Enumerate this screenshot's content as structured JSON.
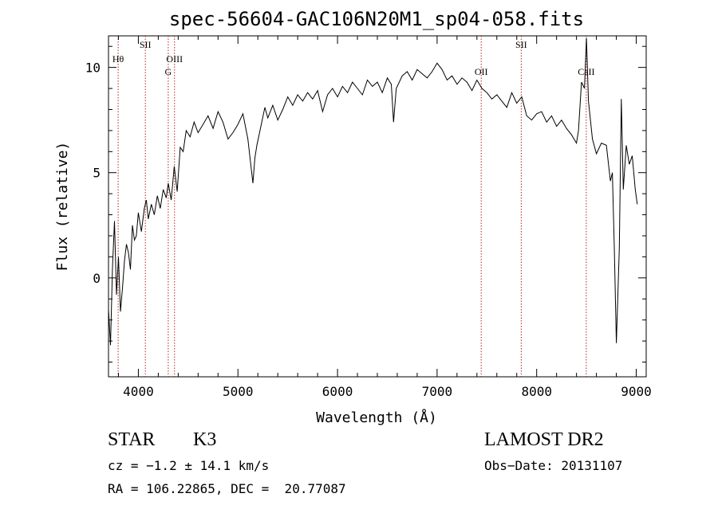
{
  "chart_data": {
    "type": "line",
    "title": "spec-56604-GAC106N20M1_sp04-058.fits",
    "xlabel": "Wavelength (Å)",
    "ylabel": "Flux (relative)",
    "xlim": [
      3700,
      9100
    ],
    "ylim": [
      -4.7,
      11.5
    ],
    "xticks": [
      4000,
      5000,
      6000,
      7000,
      8000,
      9000
    ],
    "yticks": [
      0,
      5,
      10
    ],
    "grid": false,
    "line_color": "#000000",
    "marker_color": "#b22222",
    "lines": [
      {
        "wavelength": 3797,
        "label": "Hθ"
      },
      {
        "wavelength": 4070,
        "label": "SII"
      },
      {
        "wavelength": 4300,
        "label": "G"
      },
      {
        "wavelength": 4363,
        "label": "OIII"
      },
      {
        "wavelength": 7443,
        "label": "OII"
      },
      {
        "wavelength": 7845,
        "label": "SII"
      },
      {
        "wavelength": 8498,
        "label": "CaII"
      }
    ],
    "series": [
      {
        "x": [
          3700,
          3720,
          3740,
          3760,
          3780,
          3800,
          3820,
          3840,
          3860,
          3880,
          3900,
          3920,
          3940,
          3960,
          3980,
          4000,
          4030,
          4060,
          4080,
          4100,
          4130,
          4160,
          4190,
          4220,
          4250,
          4280,
          4300,
          4330,
          4360,
          4390,
          4420,
          4450,
          4480,
          4520,
          4560,
          4600,
          4650,
          4700,
          4750,
          4800,
          4850,
          4900,
          4950,
          5000,
          5050,
          5100,
          5150,
          5170,
          5190,
          5230,
          5270,
          5300,
          5350,
          5400,
          5450,
          5500,
          5550,
          5600,
          5650,
          5700,
          5750,
          5800,
          5850,
          5900,
          5950,
          6000,
          6050,
          6100,
          6150,
          6200,
          6250,
          6300,
          6350,
          6400,
          6450,
          6500,
          6540,
          6563,
          6590,
          6650,
          6700,
          6750,
          6800,
          6850,
          6900,
          6950,
          7000,
          7050,
          7100,
          7150,
          7200,
          7250,
          7300,
          7350,
          7400,
          7450,
          7500,
          7550,
          7600,
          7650,
          7700,
          7750,
          7800,
          7850,
          7900,
          7950,
          8000,
          8050,
          8100,
          8150,
          8200,
          8250,
          8300,
          8350,
          8400,
          8420,
          8450,
          8480,
          8500,
          8520,
          8560,
          8600,
          8650,
          8700,
          8740,
          8760,
          8780,
          8800,
          8830,
          8850,
          8870,
          8900,
          8930,
          8960,
          8990,
          9010
        ],
        "y": [
          -1.5,
          -3.2,
          0.5,
          2.7,
          -0.8,
          1.0,
          -1.6,
          -0.5,
          0.8,
          1.6,
          1.2,
          0.4,
          2.5,
          1.8,
          2.0,
          3.1,
          2.2,
          3.3,
          3.7,
          2.8,
          3.5,
          3.0,
          3.9,
          3.3,
          4.2,
          3.8,
          4.5,
          3.7,
          5.3,
          4.1,
          6.2,
          6.0,
          7.0,
          6.7,
          7.4,
          6.9,
          7.3,
          7.7,
          7.1,
          7.9,
          7.4,
          6.6,
          6.9,
          7.3,
          7.8,
          6.6,
          4.5,
          5.7,
          6.3,
          7.2,
          8.1,
          7.6,
          8.2,
          7.5,
          8.0,
          8.6,
          8.2,
          8.7,
          8.4,
          8.8,
          8.5,
          8.9,
          7.9,
          8.7,
          9.0,
          8.6,
          9.1,
          8.8,
          9.3,
          9.0,
          8.7,
          9.4,
          9.1,
          9.3,
          8.8,
          9.5,
          9.2,
          7.4,
          9.0,
          9.6,
          9.8,
          9.4,
          9.9,
          9.7,
          9.5,
          9.8,
          10.2,
          9.9,
          9.4,
          9.6,
          9.2,
          9.5,
          9.3,
          8.9,
          9.4,
          9.0,
          8.8,
          8.5,
          8.7,
          8.4,
          8.1,
          8.8,
          8.3,
          8.6,
          7.7,
          7.5,
          7.8,
          7.9,
          7.4,
          7.7,
          7.2,
          7.5,
          7.1,
          6.8,
          6.4,
          7.0,
          9.3,
          9.0,
          11.4,
          8.4,
          6.6,
          5.9,
          6.4,
          6.3,
          4.6,
          5.0,
          1.3,
          -3.1,
          1.4,
          8.5,
          4.2,
          6.3,
          5.4,
          5.8,
          4.2,
          3.5
        ]
      }
    ]
  },
  "info": {
    "object_class": "STAR",
    "subclass": "K3",
    "survey": "LAMOST DR2",
    "cz": "cz = −1.2 ± 14.1 km/s",
    "obs_date": "Obs−Date: 20131107",
    "coords": "RA = 106.22865, DEC =  20.77087"
  }
}
